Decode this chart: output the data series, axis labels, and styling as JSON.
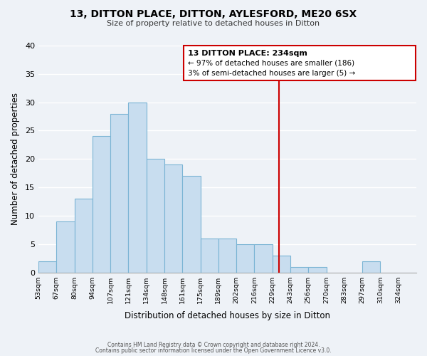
{
  "title": "13, DITTON PLACE, DITTON, AYLESFORD, ME20 6SX",
  "subtitle": "Size of property relative to detached houses in Ditton",
  "xlabel": "Distribution of detached houses by size in Ditton",
  "ylabel": "Number of detached properties",
  "bar_color": "#c8ddef",
  "bar_edge_color": "#7ab4d4",
  "bin_labels": [
    "53sqm",
    "67sqm",
    "80sqm",
    "94sqm",
    "107sqm",
    "121sqm",
    "134sqm",
    "148sqm",
    "161sqm",
    "175sqm",
    "189sqm",
    "202sqm",
    "216sqm",
    "229sqm",
    "243sqm",
    "256sqm",
    "270sqm",
    "283sqm",
    "297sqm",
    "310sqm",
    "324sqm"
  ],
  "bar_heights": [
    2,
    9,
    13,
    24,
    28,
    30,
    20,
    19,
    17,
    6,
    6,
    5,
    5,
    3,
    1,
    1,
    0,
    0,
    2,
    0,
    0
  ],
  "bin_starts": [
    53,
    67,
    80,
    94,
    107,
    121,
    134,
    148,
    161,
    175,
    189,
    202,
    216,
    229,
    243,
    256,
    270,
    283,
    297,
    310,
    324
  ],
  "ylim": [
    0,
    40
  ],
  "yticks": [
    0,
    5,
    10,
    15,
    20,
    25,
    30,
    35,
    40
  ],
  "property_value": 234,
  "property_line_label": "13 DITTON PLACE: 234sqm",
  "annotation_line1": "← 97% of detached houses are smaller (186)",
  "annotation_line2": "3% of semi-detached houses are larger (5) →",
  "annotation_box_color": "#ffffff",
  "annotation_box_edge": "#cc0000",
  "line_color": "#cc0000",
  "footer_line1": "Contains HM Land Registry data © Crown copyright and database right 2024.",
  "footer_line2": "Contains public sector information licensed under the Open Government Licence v3.0.",
  "background_color": "#eef2f7",
  "grid_color": "#ffffff"
}
